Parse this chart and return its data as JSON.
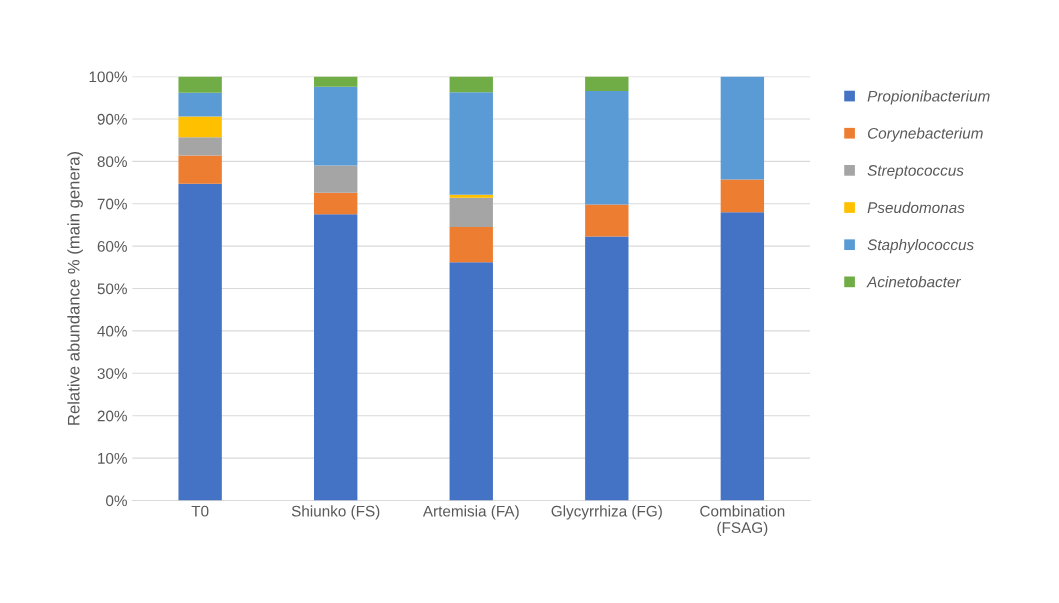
{
  "chart_data": {
    "type": "bar",
    "stacked": true,
    "ylabel": "Relative abundance % (main genera)",
    "categories": [
      "T0",
      "Shiunko (FS)",
      "Artemisia (FA)",
      "Glycyrrhiza (FG)",
      "Combination\n(FSAG)"
    ],
    "series": [
      {
        "name": "Propionibacterium",
        "color": "#4472c4",
        "values": [
          74.7,
          67.5,
          56.2,
          62.3,
          68.0
        ]
      },
      {
        "name": "Corynebacterium",
        "color": "#ed7d31",
        "values": [
          6.7,
          5.1,
          8.3,
          7.5,
          7.7
        ]
      },
      {
        "name": "Streptococcus",
        "color": "#a5a5a5",
        "values": [
          4.3,
          6.4,
          6.9,
          0,
          0
        ]
      },
      {
        "name": "Pseudomonas",
        "color": "#ffc000",
        "values": [
          4.9,
          0,
          0.7,
          0,
          0
        ]
      },
      {
        "name": "Staphylococcus",
        "color": "#5b9bd5",
        "values": [
          5.6,
          18.6,
          24.2,
          26.8,
          24.3
        ]
      },
      {
        "name": "Acinetobacter",
        "color": "#70ad47",
        "values": [
          3.8,
          2.4,
          3.7,
          3.4,
          0
        ]
      }
    ],
    "ylim": [
      0,
      100
    ],
    "yticks": [
      {
        "value": 0,
        "label": "0%"
      },
      {
        "value": 10,
        "label": "10%"
      },
      {
        "value": 20,
        "label": "20%"
      },
      {
        "value": 30,
        "label": "30%"
      },
      {
        "value": 40,
        "label": "40%"
      },
      {
        "value": 50,
        "label": "50%"
      },
      {
        "value": 60,
        "label": "60%"
      },
      {
        "value": 70,
        "label": "70%"
      },
      {
        "value": 80,
        "label": "80%"
      },
      {
        "value": 90,
        "label": "90%"
      },
      {
        "value": 100,
        "label": "100%"
      }
    ],
    "grid": "y",
    "legend": "right"
  }
}
